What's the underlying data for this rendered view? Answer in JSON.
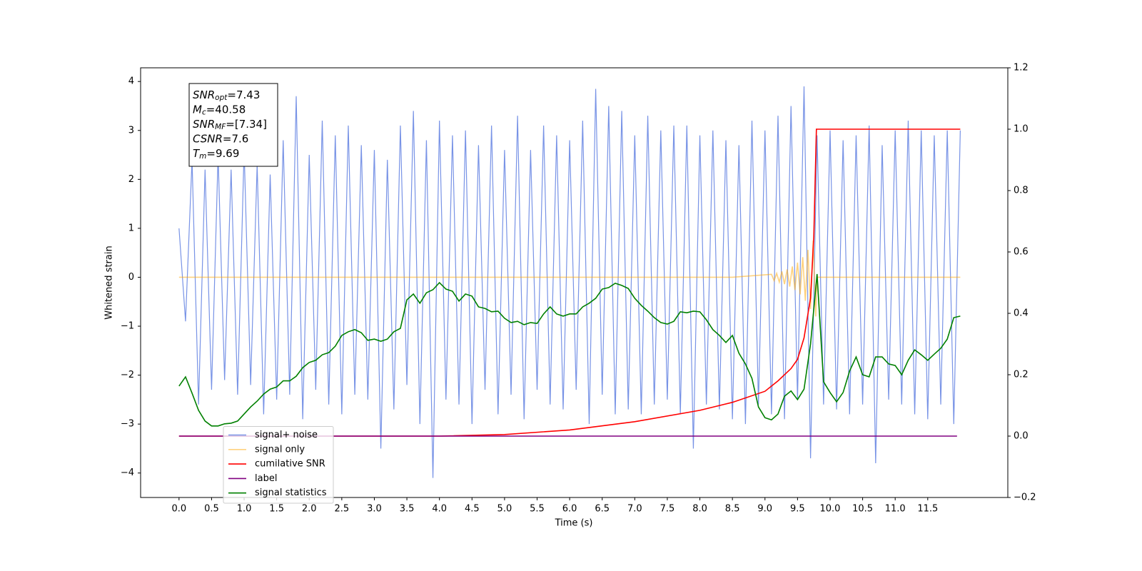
{
  "chart_data": {
    "type": "line",
    "xlabel": "Time (s)",
    "ylabel": "Whitened strain",
    "xlim": [
      -0.59,
      12.73
    ],
    "ylim": [
      -4.5,
      4.28
    ],
    "y2lim": [
      -0.2,
      1.2
    ],
    "xticks": [
      {
        "value": 0,
        "label": "0.0"
      },
      0.5,
      {
        "value": 1,
        "label": "1.0"
      },
      1.5,
      {
        "value": 2,
        "label": "2.0"
      },
      2.5,
      {
        "value": 3,
        "label": "3.0"
      },
      3.5,
      {
        "value": 4,
        "label": "4.0"
      },
      4.5,
      {
        "value": 5,
        "label": "5.0"
      },
      5.5,
      {
        "value": 6,
        "label": "6.0"
      },
      6.5,
      {
        "value": 7,
        "label": "7.0"
      },
      7.5,
      {
        "value": 8,
        "label": "8.0"
      },
      8.5,
      {
        "value": 9,
        "label": "9.0"
      },
      9.5,
      {
        "value": 10,
        "label": "10.0"
      },
      10.5,
      {
        "value": 11,
        "label": "11.0"
      },
      11.5
    ],
    "yticks": [
      {
        "value": -4,
        "label": "−4"
      },
      {
        "value": -3,
        "label": "−3"
      },
      {
        "value": -2,
        "label": "−2"
      },
      {
        "value": -1,
        "label": "−1"
      },
      0,
      1,
      2,
      3,
      4
    ],
    "y2ticks": [
      {
        "value": -0.2,
        "label": "−0.2"
      },
      {
        "value": 0,
        "label": "0.0"
      },
      0.2,
      0.4,
      0.6,
      0.8,
      {
        "value": 1,
        "label": "1.0"
      },
      1.2
    ],
    "legend": "lower left",
    "annotations": [
      {
        "base": "SNR",
        "sub": "opt",
        "rest": "=7.43"
      },
      {
        "base": "M",
        "sub": "c",
        "rest": "=40.58"
      },
      {
        "base": "SNR",
        "sub": "MF",
        "rest": "=[7.34]"
      },
      {
        "base": "CSNR",
        "rest": "=7.6"
      },
      {
        "base": "T",
        "sub": "m",
        "rest": "=9.69"
      }
    ],
    "x": [
      0,
      0.1,
      0.2,
      0.3,
      0.4,
      0.5,
      0.6,
      0.7,
      0.8,
      0.9,
      1,
      1.1,
      1.2,
      1.3,
      1.4,
      1.5,
      1.6,
      1.7,
      1.8,
      1.9,
      2,
      2.1,
      2.2,
      2.3,
      2.4,
      2.5,
      2.6,
      2.7,
      2.8,
      2.9,
      3,
      3.1,
      3.2,
      3.3,
      3.4,
      3.5,
      3.6,
      3.7,
      3.8,
      3.9,
      4,
      4.1,
      4.2,
      4.3,
      4.4,
      4.5,
      4.6,
      4.7,
      4.8,
      4.9,
      5,
      5.1,
      5.2,
      5.3,
      5.4,
      5.5,
      5.6,
      5.7,
      5.8,
      5.9,
      6,
      6.1,
      6.2,
      6.3,
      6.4,
      6.5,
      6.6,
      6.7,
      6.8,
      6.9,
      7,
      7.1,
      7.2,
      7.3,
      7.4,
      7.5,
      7.6,
      7.7,
      7.8,
      7.9,
      8,
      8.1,
      8.2,
      8.3,
      8.4,
      8.5,
      8.6,
      8.7,
      8.8,
      8.9,
      9,
      9.1,
      9.2,
      9.3,
      9.4,
      9.5,
      9.6,
      9.7,
      9.8,
      9.9,
      10,
      10.1,
      10.2,
      10.3,
      10.4,
      10.5,
      10.6,
      10.7,
      10.8,
      10.9,
      11,
      11.1,
      11.2,
      11.3,
      11.4,
      11.5,
      11.6,
      11.7,
      11.8,
      11.9,
      12
    ],
    "series": [
      {
        "name": "signal+ noise",
        "color": "#7893e6",
        "values": [
          1.0,
          -0.9,
          2.4,
          -2.6,
          2.2,
          -2.3,
          2.5,
          -2.1,
          2.2,
          -2.4,
          2.6,
          -2.2,
          2.3,
          -2.8,
          2.1,
          -2.5,
          2.8,
          -2.4,
          3.7,
          -2.9,
          2.5,
          -2.3,
          3.2,
          -2.6,
          2.9,
          -2.8,
          3.1,
          -2.4,
          2.7,
          -2.5,
          2.6,
          -3.5,
          2.4,
          -2.7,
          3.1,
          -2.2,
          3.4,
          -3.0,
          2.8,
          -4.1,
          3.2,
          -2.5,
          2.9,
          -2.6,
          3.0,
          -3.0,
          2.7,
          -2.3,
          3.1,
          -2.8,
          2.6,
          -2.4,
          3.3,
          -2.9,
          2.6,
          -2.3,
          3.1,
          -2.6,
          2.9,
          -2.7,
          2.8,
          -2.3,
          3.2,
          -3.0,
          3.85,
          -2.4,
          3.5,
          -2.8,
          3.4,
          -2.7,
          2.9,
          -2.8,
          3.3,
          -2.6,
          3.0,
          -2.5,
          3.1,
          -2.8,
          3.1,
          -3.5,
          2.9,
          -2.6,
          3.0,
          -2.7,
          2.8,
          -2.9,
          2.7,
          -3.0,
          3.2,
          -2.6,
          3.0,
          -2.8,
          3.3,
          -2.9,
          3.5,
          -2.5,
          3.9,
          -3.7,
          2.9,
          -2.6,
          3.0,
          -2.7,
          2.8,
          -2.8,
          2.9,
          -2.6,
          3.1,
          -3.8,
          2.7,
          -2.5,
          3.0,
          -2.6,
          3.2,
          -2.8,
          3.0,
          -2.9,
          2.9,
          -2.6,
          3.0,
          -3.0,
          3.0
        ]
      },
      {
        "name": "signal only",
        "color": "#ffa500",
        "alpha": 0.5,
        "x": [
          0,
          8.5,
          9.1,
          9.14,
          9.18,
          9.22,
          9.26,
          9.3,
          9.34,
          9.38,
          9.42,
          9.46,
          9.5,
          9.54,
          9.58,
          9.62,
          9.66,
          9.7,
          9.74,
          9.78,
          9.8,
          12
        ],
        "values": [
          0,
          0,
          0.06,
          -0.07,
          0.08,
          -0.1,
          0.12,
          -0.14,
          0.16,
          -0.19,
          0.22,
          -0.26,
          0.3,
          -0.35,
          0.41,
          -0.48,
          0.56,
          -0.65,
          0.75,
          -0.8,
          0,
          0
        ]
      },
      {
        "name": "cumilative SNR",
        "color": "#ff0000",
        "axis": "y2",
        "x": [
          0,
          4,
          5,
          6,
          7,
          8,
          8.5,
          9,
          9.2,
          9.4,
          9.5,
          9.6,
          9.7,
          9.75,
          9.79,
          12
        ],
        "values": [
          0,
          0,
          0.005,
          0.02,
          0.047,
          0.084,
          0.11,
          0.146,
          0.18,
          0.22,
          0.25,
          0.32,
          0.45,
          0.65,
          1.0,
          1.0
        ]
      },
      {
        "name": "label",
        "color": "#800080",
        "axis": "y2",
        "x": [
          0,
          11.95
        ],
        "values": [
          0,
          0
        ]
      },
      {
        "name": "signal statistics",
        "color": "#008000",
        "axis": "y2",
        "values": [
          0.163,
          0.193,
          0.14,
          0.084,
          0.049,
          0.033,
          0.033,
          0.04,
          0.042,
          0.049,
          0.072,
          0.095,
          0.114,
          0.137,
          0.153,
          0.16,
          0.18,
          0.18,
          0.195,
          0.223,
          0.24,
          0.247,
          0.265,
          0.272,
          0.293,
          0.328,
          0.34,
          0.347,
          0.337,
          0.312,
          0.316,
          0.309,
          0.316,
          0.34,
          0.351,
          0.444,
          0.463,
          0.433,
          0.467,
          0.477,
          0.5,
          0.479,
          0.472,
          0.44,
          0.463,
          0.456,
          0.421,
          0.416,
          0.405,
          0.407,
          0.384,
          0.37,
          0.374,
          0.363,
          0.37,
          0.367,
          0.398,
          0.421,
          0.398,
          0.391,
          0.398,
          0.398,
          0.421,
          0.433,
          0.449,
          0.479,
          0.484,
          0.498,
          0.491,
          0.481,
          0.449,
          0.426,
          0.407,
          0.386,
          0.37,
          0.365,
          0.374,
          0.405,
          0.402,
          0.407,
          0.405,
          0.379,
          0.347,
          0.328,
          0.305,
          0.328,
          0.27,
          0.235,
          0.188,
          0.095,
          0.06,
          0.053,
          0.072,
          0.13,
          0.147,
          0.119,
          0.153,
          0.3,
          0.528,
          0.177,
          0.142,
          0.112,
          0.142,
          0.212,
          0.258,
          0.2,
          0.193,
          0.258,
          0.258,
          0.235,
          0.23,
          0.2,
          0.247,
          0.281,
          0.265,
          0.247,
          0.267,
          0.286,
          0.316,
          0.386,
          0.391
        ]
      }
    ]
  }
}
